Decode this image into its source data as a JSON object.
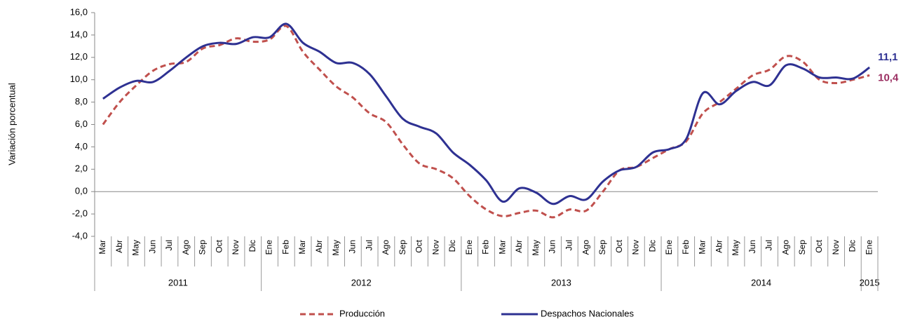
{
  "chart_data": {
    "type": "line",
    "y_label": "Variación porcentual",
    "groups": [
      {
        "name": "2011",
        "categories": [
          "Mar",
          "Abr",
          "May",
          "Jun",
          "Jul",
          "Ago",
          "Sep",
          "Oct",
          "Nov",
          "Dic"
        ]
      },
      {
        "name": "2012",
        "categories": [
          "Ene",
          "Feb",
          "Mar",
          "Abr",
          "May",
          "Jun",
          "Jul",
          "Ago",
          "Sep",
          "Oct",
          "Nov",
          "Dic"
        ]
      },
      {
        "name": "2013",
        "categories": [
          "Ene",
          "Feb",
          "Mar",
          "Abr",
          "May",
          "Jun",
          "Jul",
          "Ago",
          "Sep",
          "Oct",
          "Nov",
          "Dic"
        ]
      },
      {
        "name": "2014",
        "categories": [
          "Ene",
          "Feb",
          "Mar",
          "Abr",
          "May",
          "Jun",
          "Jul",
          "Ago",
          "Sep",
          "Oct",
          "Nov",
          "Dic"
        ]
      },
      {
        "name": "2015",
        "categories": [
          "Ene"
        ]
      }
    ],
    "ylim": [
      -4,
      16
    ],
    "yticks": [
      {
        "value": -4,
        "label": "-4,0"
      },
      {
        "value": -2,
        "label": "-2,0"
      },
      {
        "value": 0,
        "label": "0,0"
      },
      {
        "value": 2,
        "label": "2,0"
      },
      {
        "value": 4,
        "label": "4,0"
      },
      {
        "value": 6,
        "label": "6,0"
      },
      {
        "value": 8,
        "label": "8,0"
      },
      {
        "value": 10,
        "label": "10,0"
      },
      {
        "value": 12,
        "label": "12,0"
      },
      {
        "value": 14,
        "label": "14,0"
      },
      {
        "value": 16,
        "label": "16,0"
      }
    ],
    "series": [
      {
        "name": "Producción",
        "color": "#c0504d",
        "dash": true,
        "value_label_color": "#9b2f62",
        "values": [
          6.0,
          8.0,
          9.5,
          10.8,
          11.4,
          11.6,
          12.8,
          13.1,
          13.7,
          13.4,
          13.6,
          14.8,
          12.5,
          10.9,
          9.4,
          8.4,
          7.0,
          6.2,
          4.2,
          2.5,
          2.0,
          1.2,
          -0.4,
          -1.6,
          -2.2,
          -1.9,
          -1.7,
          -2.3,
          -1.6,
          -1.7,
          0.0,
          1.9,
          2.2,
          3.0,
          3.8,
          4.5,
          7.0,
          8.0,
          9.2,
          10.4,
          10.9,
          12.1,
          11.6,
          10.0,
          9.7,
          10.0,
          10.4
        ],
        "value_labels": [
          null,
          null,
          null,
          null,
          null,
          null,
          null,
          null,
          null,
          null,
          null,
          null,
          null,
          null,
          null,
          null,
          null,
          null,
          null,
          null,
          null,
          null,
          null,
          null,
          null,
          null,
          null,
          null,
          null,
          null,
          null,
          null,
          null,
          null,
          null,
          null,
          null,
          null,
          null,
          null,
          null,
          null,
          null,
          null,
          null,
          null,
          "10,4"
        ]
      },
      {
        "name": "Despachos Nacionales",
        "color": "#2e3192",
        "dash": false,
        "value_label_color": "#2e3192",
        "values": [
          8.3,
          9.3,
          9.9,
          9.8,
          10.8,
          12.0,
          13.0,
          13.3,
          13.2,
          13.8,
          13.8,
          15.0,
          13.3,
          12.5,
          11.5,
          11.5,
          10.5,
          8.5,
          6.5,
          5.8,
          5.2,
          3.5,
          2.4,
          1.0,
          -0.9,
          0.3,
          -0.1,
          -1.1,
          -0.4,
          -0.7,
          0.9,
          1.9,
          2.2,
          3.5,
          3.8,
          4.7,
          8.8,
          7.8,
          9.0,
          9.8,
          9.5,
          11.3,
          11.0,
          10.2,
          10.2,
          10.1,
          11.1
        ],
        "value_labels": [
          null,
          null,
          null,
          null,
          null,
          null,
          null,
          null,
          null,
          null,
          null,
          null,
          null,
          null,
          null,
          null,
          null,
          null,
          null,
          null,
          null,
          null,
          null,
          null,
          null,
          null,
          null,
          null,
          null,
          null,
          null,
          null,
          null,
          null,
          null,
          null,
          null,
          null,
          null,
          null,
          null,
          null,
          null,
          null,
          null,
          null,
          "11,1"
        ]
      }
    ]
  }
}
